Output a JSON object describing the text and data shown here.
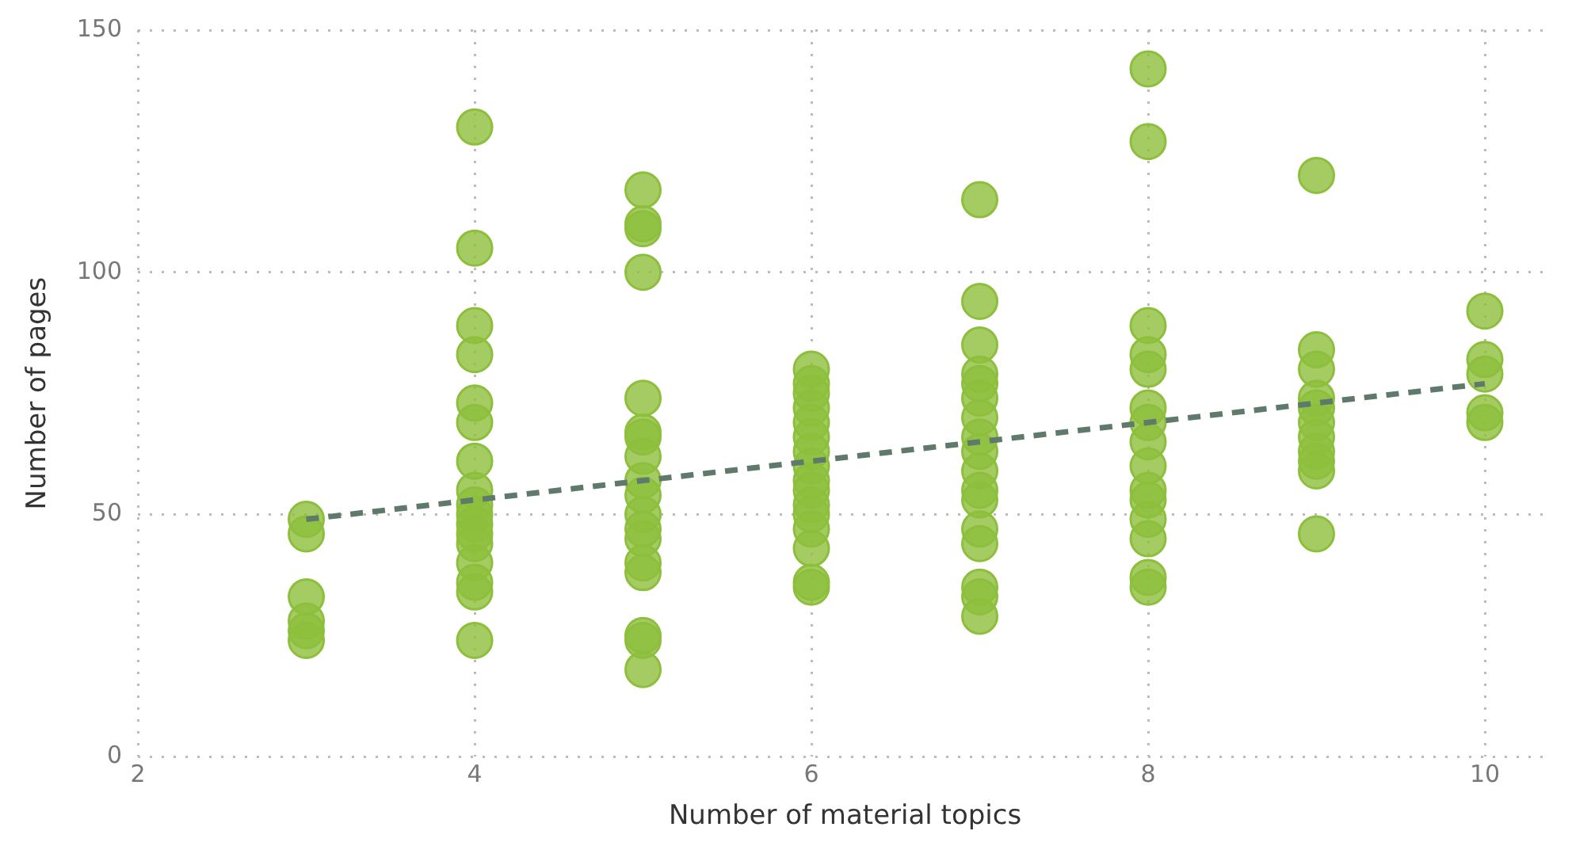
{
  "chart_data": {
    "type": "scatter",
    "xlabel": "Number of material topics",
    "ylabel": "Number of pages",
    "xlim": [
      2,
      10.4
    ],
    "xticks": [
      2,
      4,
      6,
      8,
      10
    ],
    "ylim": [
      0,
      150
    ],
    "yticks": [
      0,
      50,
      100,
      150
    ],
    "grid": true,
    "legend": false,
    "marker": "circle",
    "series": [
      {
        "color": "#8dbf3c",
        "x": [
          3,
          3,
          3,
          3,
          3,
          3,
          4,
          4,
          4,
          4,
          4,
          4,
          4,
          4,
          4,
          4,
          4,
          4,
          4,
          4,
          4,
          4,
          4,
          5,
          5,
          5,
          5,
          5,
          5,
          5,
          5,
          5,
          5,
          5,
          5,
          5,
          5,
          5,
          5,
          5,
          5,
          6,
          6,
          6,
          6,
          6,
          6,
          6,
          6,
          6,
          6,
          6,
          6,
          6,
          6,
          6,
          6,
          7,
          7,
          7,
          7,
          7,
          7,
          7,
          7,
          7,
          7,
          7,
          7,
          7,
          7,
          7,
          7,
          7,
          8,
          8,
          8,
          8,
          8,
          8,
          8,
          8,
          8,
          8,
          8,
          8,
          8,
          8,
          8,
          9,
          9,
          9,
          9,
          9,
          9,
          9,
          9,
          9,
          9,
          9,
          10,
          10,
          10,
          10,
          10
        ],
        "values": [
          49,
          46,
          33,
          28,
          26,
          24,
          130,
          105,
          89,
          83,
          73,
          69,
          61,
          55,
          52,
          50,
          48,
          46,
          44,
          40,
          36,
          34,
          24,
          117,
          110,
          109,
          100,
          74,
          67,
          66,
          62,
          57,
          54,
          50,
          47,
          45,
          40,
          38,
          25,
          24,
          18,
          80,
          77,
          75,
          72,
          69,
          66,
          63,
          60,
          57,
          55,
          52,
          50,
          47,
          43,
          36,
          35,
          115,
          94,
          85,
          79,
          77,
          74,
          70,
          66,
          63,
          59,
          55,
          53,
          47,
          44,
          35,
          33,
          29,
          142,
          127,
          89,
          83,
          80,
          72,
          69,
          65,
          60,
          55,
          53,
          49,
          45,
          37,
          35,
          120,
          84,
          80,
          74,
          72,
          69,
          66,
          63,
          61,
          59,
          46,
          92,
          82,
          79,
          71,
          69
        ]
      },
      {
        "type": "line",
        "color": "#5f7a6a",
        "line_style": "dashed",
        "marker": "none",
        "x": [
          3,
          10
        ],
        "values": [
          49,
          77
        ]
      }
    ]
  }
}
